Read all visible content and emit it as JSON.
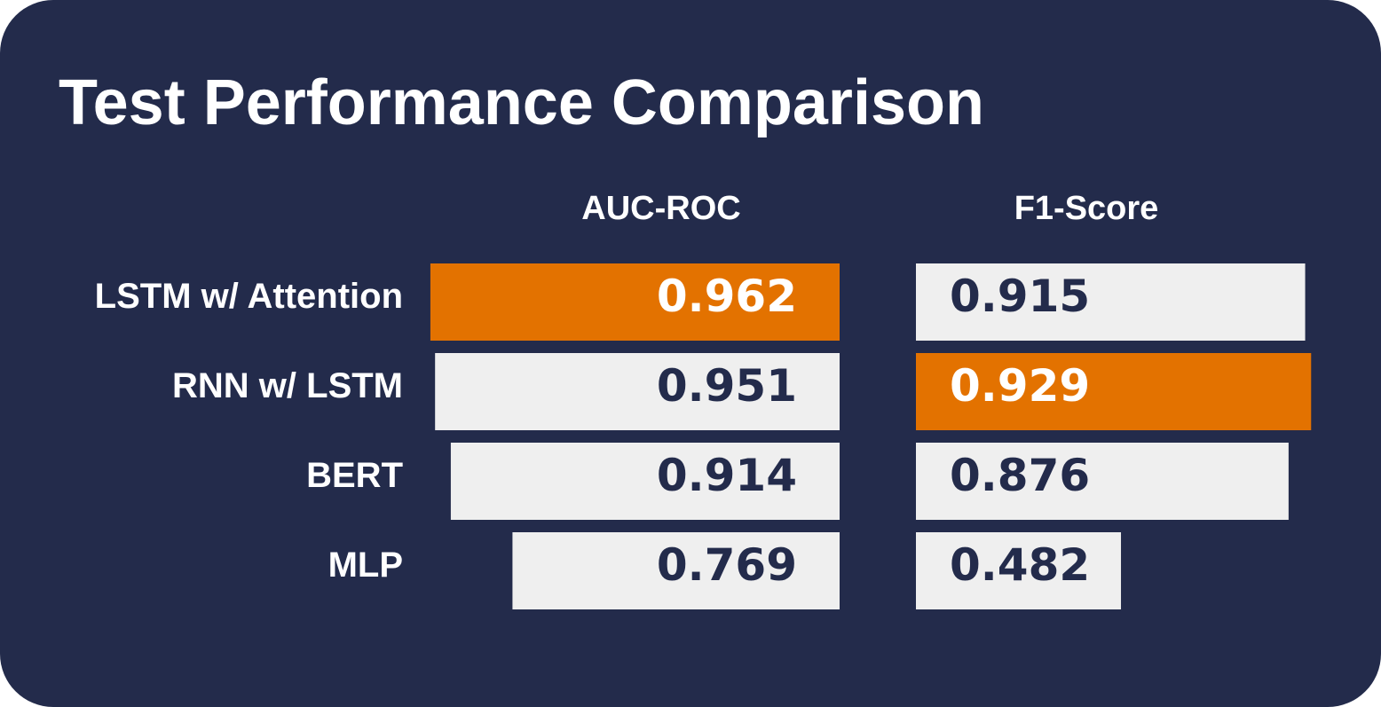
{
  "title": "Test Performance Comparison",
  "colors": {
    "background": "#232b4b",
    "bar_default": "#efefef",
    "bar_highlight": "#e37200",
    "text_dark": "#232b4b",
    "text_light": "#ffffff"
  },
  "chart_data": {
    "type": "bar",
    "orientation": "horizontal",
    "title": "Test Performance Comparison",
    "categories": [
      "LSTM w/ Attention",
      "RNN w/ LSTM",
      "BERT",
      "MLP"
    ],
    "series": [
      {
        "name": "AUC-ROC",
        "values": [
          0.962,
          0.951,
          0.914,
          0.769
        ],
        "labels": [
          "0.962",
          "0.951",
          "0.914",
          "0.769"
        ],
        "best_index": 0
      },
      {
        "name": "F1-Score",
        "values": [
          0.915,
          0.929,
          0.876,
          0.482
        ],
        "labels": [
          "0.915",
          "0.929",
          "0.876",
          "0.482"
        ],
        "best_index": 1
      }
    ],
    "grid": false,
    "legend": "none"
  }
}
